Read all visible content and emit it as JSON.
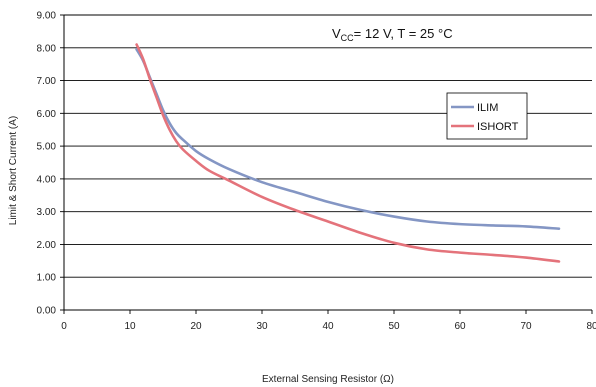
{
  "chart_data": {
    "type": "line",
    "title": "",
    "xlabel": "External Sensing Resistor (Ω)",
    "ylabel": "Limit & Short Current (A)",
    "xlim": [
      0,
      80
    ],
    "ylim": [
      0,
      9
    ],
    "x_ticks": [
      "0",
      "10",
      "20",
      "30",
      "40",
      "50",
      "60",
      "70",
      "80"
    ],
    "y_ticks": [
      "0.00",
      "1.00",
      "2.00",
      "3.00",
      "4.00",
      "5.00",
      "6.00",
      "7.00",
      "8.00",
      "9.00"
    ],
    "grid": "horizontal",
    "legend_position": "right",
    "annotation": {
      "parts": [
        "V",
        "CC",
        "= 12 V, T = 25 °C"
      ]
    },
    "series": [
      {
        "name": "ILIM",
        "color": "#8496c4",
        "points": [
          [
            11,
            7.95
          ],
          [
            12,
            7.6
          ],
          [
            13,
            7.1
          ],
          [
            14,
            6.6
          ],
          [
            15,
            6.1
          ],
          [
            16,
            5.7
          ],
          [
            17,
            5.4
          ],
          [
            18,
            5.2
          ],
          [
            20,
            4.85
          ],
          [
            22,
            4.6
          ],
          [
            25,
            4.3
          ],
          [
            30,
            3.9
          ],
          [
            35,
            3.6
          ],
          [
            40,
            3.3
          ],
          [
            45,
            3.05
          ],
          [
            50,
            2.85
          ],
          [
            55,
            2.7
          ],
          [
            60,
            2.62
          ],
          [
            65,
            2.58
          ],
          [
            70,
            2.55
          ],
          [
            75,
            2.48
          ]
        ]
      },
      {
        "name": "ISHORT",
        "color": "#e4737b",
        "points": [
          [
            11,
            8.1
          ],
          [
            12,
            7.65
          ],
          [
            13,
            7.05
          ],
          [
            14,
            6.5
          ],
          [
            15,
            5.95
          ],
          [
            16,
            5.5
          ],
          [
            17,
            5.15
          ],
          [
            18,
            4.9
          ],
          [
            20,
            4.55
          ],
          [
            22,
            4.25
          ],
          [
            25,
            3.95
          ],
          [
            30,
            3.45
          ],
          [
            35,
            3.05
          ],
          [
            40,
            2.7
          ],
          [
            45,
            2.35
          ],
          [
            50,
            2.05
          ],
          [
            55,
            1.85
          ],
          [
            60,
            1.75
          ],
          [
            65,
            1.68
          ],
          [
            70,
            1.6
          ],
          [
            75,
            1.48
          ]
        ]
      }
    ]
  }
}
